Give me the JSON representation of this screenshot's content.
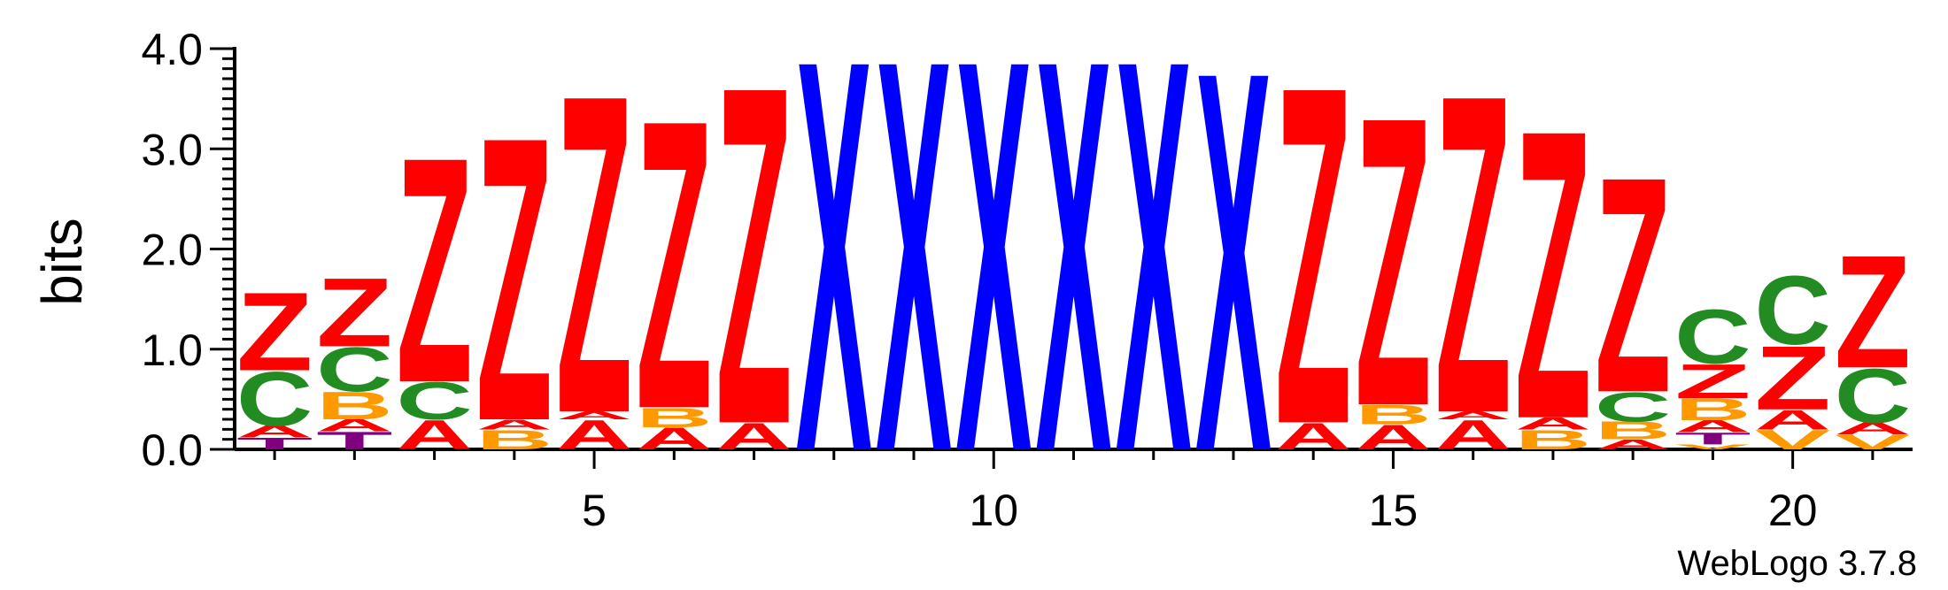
{
  "chart_data": {
    "type": "sequence-logo",
    "ylabel": "bits",
    "ylim": [
      0,
      4.0
    ],
    "y_ticks": [
      0.0,
      1.0,
      2.0,
      3.0,
      4.0
    ],
    "y_tick_labels": [
      "0.0",
      "1.0",
      "2.0",
      "3.0",
      "4.0"
    ],
    "x_ticks": [
      5,
      10,
      15,
      20
    ],
    "positions": [
      1,
      2,
      3,
      4,
      5,
      6,
      7,
      8,
      9,
      10,
      11,
      12,
      13,
      14,
      15,
      16,
      17,
      18,
      19,
      20,
      21
    ],
    "colors": {
      "Z": "#ff0000",
      "X": "#0000ff",
      "C": "#228b22",
      "B": "#ff9900",
      "A": "#ff0000",
      "T": "#800080",
      "V": "#ff9900"
    },
    "stacks": [
      {
        "position": 1,
        "letters": [
          {
            "letter": "T",
            "height": 0.12
          },
          {
            "letter": "A",
            "height": 0.12
          },
          {
            "letter": "C",
            "height": 0.55
          },
          {
            "letter": "Z",
            "height": 0.8
          }
        ]
      },
      {
        "position": 2,
        "letters": [
          {
            "letter": "T",
            "height": 0.18
          },
          {
            "letter": "A",
            "height": 0.12
          },
          {
            "letter": "B",
            "height": 0.28
          },
          {
            "letter": "C",
            "height": 0.45
          },
          {
            "letter": "Z",
            "height": 0.7
          }
        ]
      },
      {
        "position": 3,
        "letters": [
          {
            "letter": "A",
            "height": 0.3
          },
          {
            "letter": "C",
            "height": 0.38
          },
          {
            "letter": "Z",
            "height": 2.3
          }
        ]
      },
      {
        "position": 4,
        "letters": [
          {
            "letter": "B",
            "height": 0.2
          },
          {
            "letter": "A",
            "height": 0.1
          },
          {
            "letter": "Z",
            "height": 2.9
          }
        ]
      },
      {
        "position": 5,
        "letters": [
          {
            "letter": "A",
            "height": 0.3
          },
          {
            "letter": "A",
            "height": 0.08
          },
          {
            "letter": "Z",
            "height": 3.25
          }
        ]
      },
      {
        "position": 6,
        "letters": [
          {
            "letter": "A",
            "height": 0.22
          },
          {
            "letter": "B",
            "height": 0.2
          },
          {
            "letter": "Z",
            "height": 2.95
          }
        ]
      },
      {
        "position": 7,
        "letters": [
          {
            "letter": "A",
            "height": 0.27
          },
          {
            "letter": "Z",
            "height": 3.45
          }
        ]
      },
      {
        "position": 8,
        "letters": [
          {
            "letter": "X",
            "height": 4.0
          }
        ]
      },
      {
        "position": 9,
        "letters": [
          {
            "letter": "X",
            "height": 4.0
          }
        ]
      },
      {
        "position": 10,
        "letters": [
          {
            "letter": "X",
            "height": 4.0
          }
        ]
      },
      {
        "position": 11,
        "letters": [
          {
            "letter": "X",
            "height": 4.0
          }
        ]
      },
      {
        "position": 12,
        "letters": [
          {
            "letter": "X",
            "height": 4.0
          }
        ]
      },
      {
        "position": 13,
        "letters": [
          {
            "letter": "X",
            "height": 3.88
          }
        ]
      },
      {
        "position": 14,
        "letters": [
          {
            "letter": "A",
            "height": 0.27
          },
          {
            "letter": "Z",
            "height": 3.45
          }
        ]
      },
      {
        "position": 15,
        "letters": [
          {
            "letter": "A",
            "height": 0.25
          },
          {
            "letter": "B",
            "height": 0.2
          },
          {
            "letter": "Z",
            "height": 2.95
          }
        ]
      },
      {
        "position": 16,
        "letters": [
          {
            "letter": "A",
            "height": 0.3
          },
          {
            "letter": "A",
            "height": 0.08
          },
          {
            "letter": "Z",
            "height": 3.25
          }
        ]
      },
      {
        "position": 17,
        "letters": [
          {
            "letter": "B",
            "height": 0.2
          },
          {
            "letter": "A",
            "height": 0.12
          },
          {
            "letter": "Z",
            "height": 2.95
          }
        ]
      },
      {
        "position": 18,
        "letters": [
          {
            "letter": "A",
            "height": 0.1
          },
          {
            "letter": "B",
            "height": 0.18
          },
          {
            "letter": "C",
            "height": 0.3
          },
          {
            "letter": "Z",
            "height": 2.2
          }
        ]
      },
      {
        "position": 19,
        "letters": [
          {
            "letter": "V",
            "height": 0.05
          },
          {
            "letter": "T",
            "height": 0.12
          },
          {
            "letter": "A",
            "height": 0.12
          },
          {
            "letter": "B",
            "height": 0.22
          },
          {
            "letter": "Z",
            "height": 0.35
          },
          {
            "letter": "C",
            "height": 0.55
          }
        ]
      },
      {
        "position": 20,
        "letters": [
          {
            "letter": "V",
            "height": 0.2
          },
          {
            "letter": "A",
            "height": 0.2
          },
          {
            "letter": "Z",
            "height": 0.65
          },
          {
            "letter": "C",
            "height": 0.7
          }
        ]
      },
      {
        "position": 21,
        "letters": [
          {
            "letter": "V",
            "height": 0.15
          },
          {
            "letter": "A",
            "height": 0.12
          },
          {
            "letter": "C",
            "height": 0.55
          },
          {
            "letter": "Z",
            "height": 1.15
          }
        ]
      }
    ]
  },
  "credit": "WebLogo 3.7.8"
}
